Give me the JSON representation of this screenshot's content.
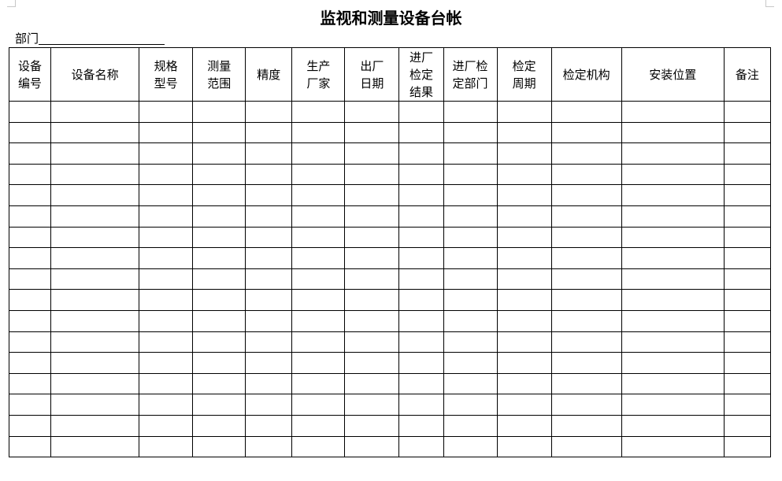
{
  "document": {
    "title": "监视和测量设备台帐",
    "department_label": "部门",
    "department_value": ""
  },
  "table": {
    "headers": [
      [
        "设备",
        "编号"
      ],
      [
        "设备名称"
      ],
      [
        "规格",
        "型号"
      ],
      [
        "测量",
        "范围"
      ],
      [
        "精度"
      ],
      [
        "生产",
        "厂家"
      ],
      [
        "出厂",
        "日期"
      ],
      [
        "进厂",
        "检定",
        "结果"
      ],
      [
        "进厂检",
        "定部门"
      ],
      [
        "检定",
        "周期"
      ],
      [
        "检定机构"
      ],
      [
        "安装位置"
      ],
      [
        "备注"
      ]
    ],
    "rows": [
      [
        "",
        "",
        "",
        "",
        "",
        "",
        "",
        "",
        "",
        "",
        "",
        "",
        ""
      ],
      [
        "",
        "",
        "",
        "",
        "",
        "",
        "",
        "",
        "",
        "",
        "",
        "",
        ""
      ],
      [
        "",
        "",
        "",
        "",
        "",
        "",
        "",
        "",
        "",
        "",
        "",
        "",
        ""
      ],
      [
        "",
        "",
        "",
        "",
        "",
        "",
        "",
        "",
        "",
        "",
        "",
        "",
        ""
      ],
      [
        "",
        "",
        "",
        "",
        "",
        "",
        "",
        "",
        "",
        "",
        "",
        "",
        ""
      ],
      [
        "",
        "",
        "",
        "",
        "",
        "",
        "",
        "",
        "",
        "",
        "",
        "",
        ""
      ],
      [
        "",
        "",
        "",
        "",
        "",
        "",
        "",
        "",
        "",
        "",
        "",
        "",
        ""
      ],
      [
        "",
        "",
        "",
        "",
        "",
        "",
        "",
        "",
        "",
        "",
        "",
        "",
        ""
      ],
      [
        "",
        "",
        "",
        "",
        "",
        "",
        "",
        "",
        "",
        "",
        "",
        "",
        ""
      ],
      [
        "",
        "",
        "",
        "",
        "",
        "",
        "",
        "",
        "",
        "",
        "",
        "",
        ""
      ],
      [
        "",
        "",
        "",
        "",
        "",
        "",
        "",
        "",
        "",
        "",
        "",
        "",
        ""
      ],
      [
        "",
        "",
        "",
        "",
        "",
        "",
        "",
        "",
        "",
        "",
        "",
        "",
        ""
      ],
      [
        "",
        "",
        "",
        "",
        "",
        "",
        "",
        "",
        "",
        "",
        "",
        "",
        ""
      ],
      [
        "",
        "",
        "",
        "",
        "",
        "",
        "",
        "",
        "",
        "",
        "",
        "",
        ""
      ],
      [
        "",
        "",
        "",
        "",
        "",
        "",
        "",
        "",
        "",
        "",
        "",
        "",
        ""
      ],
      [
        "",
        "",
        "",
        "",
        "",
        "",
        "",
        "",
        "",
        "",
        "",
        "",
        ""
      ],
      [
        "",
        "",
        "",
        "",
        "",
        "",
        "",
        "",
        "",
        "",
        "",
        "",
        ""
      ]
    ]
  }
}
